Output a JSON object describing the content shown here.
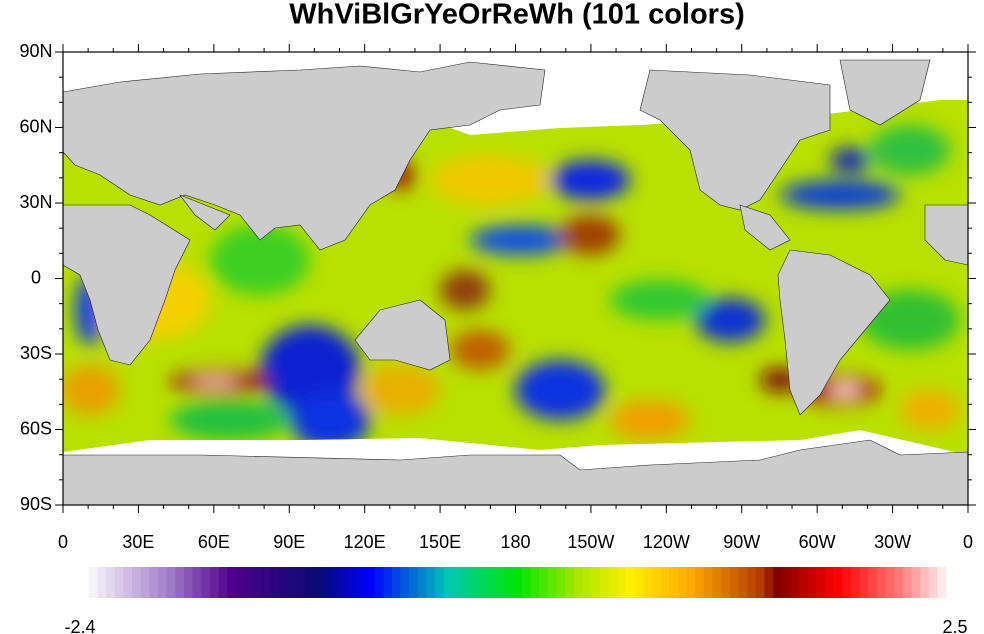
{
  "title": "WhViBlGrYeOrReWh (101 colors)",
  "map": {
    "x_ticks": [
      "0",
      "30E",
      "60E",
      "90E",
      "120E",
      "150E",
      "180",
      "150W",
      "120W",
      "90W",
      "60W",
      "30W",
      "0"
    ],
    "y_ticks": [
      "90N",
      "60N",
      "30N",
      "0",
      "30S",
      "60S",
      "90S"
    ]
  },
  "colorbar": {
    "min": -2.4,
    "max": 2.5
  }
}
